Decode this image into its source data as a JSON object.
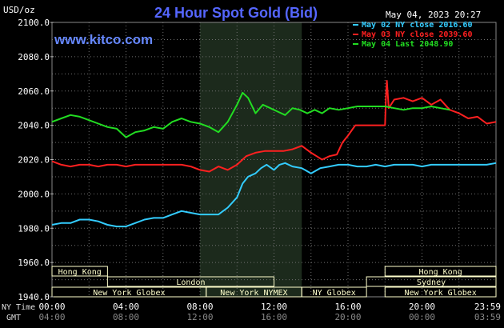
{
  "header": {
    "title": "24 Hour Spot Gold (Bid)",
    "unit": "USD/oz",
    "datetime": "May 04, 2023 20:27",
    "watermark": "www.kitco.com"
  },
  "legend": [
    {
      "label": "May 02 NY close 2016.60",
      "color": "#33ccff"
    },
    {
      "label": "May 03 NY close 2039.60",
      "color": "#ff2020"
    },
    {
      "label": "May 04 Last 2048.90",
      "color": "#22dd22"
    }
  ],
  "colors": {
    "background": "#000000",
    "plot_background": "#000000",
    "shade": "#1c2a1c",
    "grid": "#707070",
    "text": "#ffffff",
    "title": "#5566ff",
    "watermark": "#6688ff",
    "session_box": "#ffffcc"
  },
  "axis_labels": {
    "ny_time": "NY Time",
    "gmt": "GMT"
  },
  "sessions_row1": [
    {
      "label": "Hong Kong",
      "start": 0.0,
      "end": 3.0
    },
    {
      "label": "Hong Kong",
      "start": 18.0,
      "end": 24.0
    }
  ],
  "sessions_row2": [
    {
      "label": "London",
      "start": 3.0,
      "end": 12.0
    },
    {
      "label": "Sydney",
      "start": 17.0,
      "end": 24.0
    }
  ],
  "sessions_row3": [
    {
      "label": "New York Globex",
      "start": 0.0,
      "end": 8.333
    },
    {
      "label": "New York NYMEX",
      "start": 8.333,
      "end": 13.5
    },
    {
      "label": "NY Globex",
      "start": 13.5,
      "end": 17.0
    },
    {
      "label": "New York Globex",
      "start": 18.0,
      "end": 24.0
    }
  ],
  "chart_data": {
    "type": "line",
    "title": "24 Hour Spot Gold (Bid)",
    "ylabel": "USD/oz",
    "ylim": [
      1940,
      2100
    ],
    "xlim": [
      0,
      24
    ],
    "shaded_range": [
      8.0,
      13.5
    ],
    "yticks": [
      "1940.0",
      "1960.0",
      "1980.0",
      "2000.0",
      "2020.0",
      "2040.0",
      "2060.0",
      "2080.0",
      "2100.0"
    ],
    "xticks_ny": [
      "00:00",
      "04:00",
      "08:00",
      "12:00",
      "16:00",
      "20:00",
      "23:59"
    ],
    "xticks_gmt": [
      "04:00",
      "08:00",
      "12:00",
      "16:00",
      "20:00",
      "00:00",
      "03:59"
    ],
    "grid": true,
    "series": [
      {
        "name": "May 02",
        "color": "#33ccff",
        "x": [
          0,
          0.5,
          1,
          1.5,
          2,
          2.5,
          3,
          3.5,
          4,
          4.5,
          5,
          5.5,
          6,
          6.5,
          7,
          7.5,
          8,
          8.5,
          9,
          9.5,
          10,
          10.3,
          10.6,
          11,
          11.3,
          11.6,
          12,
          12.3,
          12.6,
          13,
          13.5,
          14,
          14.5,
          15,
          15.5,
          16,
          16.5,
          17,
          17.5,
          18,
          18.5,
          19,
          19.5,
          20,
          20.5,
          21,
          21.5,
          22,
          22.5,
          23,
          23.5,
          24
        ],
        "y": [
          1982,
          1983,
          1983,
          1985,
          1985,
          1984,
          1982,
          1981,
          1981,
          1983,
          1985,
          1986,
          1986,
          1988,
          1990,
          1989,
          1988,
          1988,
          1988,
          1992,
          1998,
          2006,
          2010,
          2012,
          2015,
          2017,
          2014,
          2017,
          2018,
          2016,
          2015,
          2012,
          2015,
          2016,
          2017,
          2017,
          2016,
          2016,
          2017,
          2016,
          2017,
          2017,
          2017,
          2016,
          2017,
          2017,
          2017,
          2017,
          2017,
          2017,
          2017,
          2018
        ]
      },
      {
        "name": "May 03",
        "color": "#ff2020",
        "x": [
          0,
          0.5,
          1,
          1.5,
          2,
          2.5,
          3,
          3.5,
          4,
          4.5,
          5,
          5.5,
          6,
          6.5,
          7,
          7.5,
          8,
          8.5,
          9,
          9.5,
          10,
          10.5,
          11,
          11.5,
          12,
          12.5,
          13,
          13.5,
          14,
          14.3,
          14.6,
          15,
          15.4,
          15.7,
          16,
          16.4,
          16.8,
          17.2,
          17.6,
          18,
          18.05,
          18.1,
          18.2,
          18.5,
          19,
          19.5,
          20,
          20.5,
          21,
          21.5,
          22,
          22.5,
          23,
          23.5,
          24
        ],
        "y": [
          2019,
          2017,
          2016,
          2017,
          2017,
          2016,
          2017,
          2017,
          2016,
          2017,
          2017,
          2017,
          2017,
          2017,
          2017,
          2016,
          2014,
          2013,
          2016,
          2014,
          2017,
          2022,
          2024,
          2025,
          2025,
          2025,
          2026,
          2028,
          2024,
          2022,
          2020,
          2022,
          2023,
          2030,
          2034,
          2040,
          2040,
          2040,
          2040,
          2040,
          2056,
          2066,
          2050,
          2055,
          2056,
          2054,
          2056,
          2052,
          2055,
          2049,
          2047,
          2044,
          2045,
          2041,
          2042
        ]
      },
      {
        "name": "May 04",
        "color": "#22dd22",
        "x": [
          0,
          0.5,
          1,
          1.5,
          2,
          2.5,
          3,
          3.5,
          4,
          4.5,
          5,
          5.5,
          6,
          6.5,
          7,
          7.5,
          8,
          8.5,
          9,
          9.5,
          10,
          10.3,
          10.6,
          11,
          11.4,
          11.8,
          12.2,
          12.6,
          13,
          13.4,
          13.8,
          14.2,
          14.6,
          15,
          15.5,
          16,
          16.5,
          17,
          17.5,
          18,
          18.5,
          19,
          19.5,
          20,
          20.5,
          21,
          21.5
        ],
        "y": [
          2042,
          2044,
          2046,
          2045,
          2043,
          2041,
          2039,
          2038,
          2033,
          2036,
          2037,
          2039,
          2038,
          2042,
          2044,
          2042,
          2041,
          2039,
          2036,
          2042,
          2052,
          2059,
          2056,
          2047,
          2052,
          2050,
          2048,
          2046,
          2050,
          2049,
          2047,
          2049,
          2047,
          2050,
          2049,
          2050,
          2051,
          2051,
          2051,
          2051,
          2050,
          2049,
          2050,
          2050,
          2051,
          2050,
          2049
        ]
      }
    ]
  }
}
